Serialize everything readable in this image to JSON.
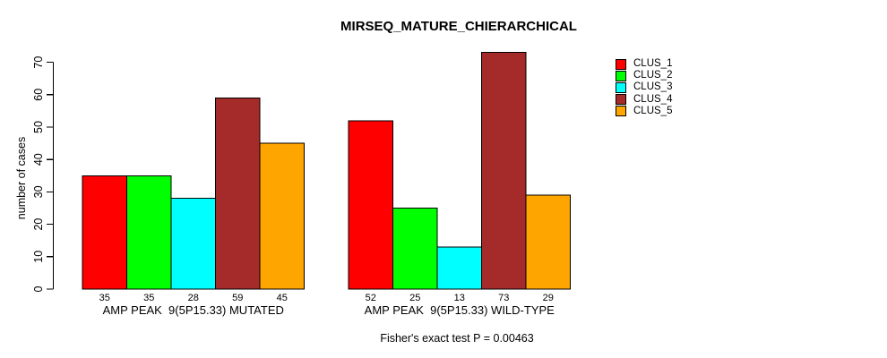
{
  "chart_data": {
    "type": "bar",
    "title": "MIRSEQ_MATURE_CHIERARCHICAL",
    "ylabel": "number of cases",
    "xlabel": "",
    "ylim": [
      0,
      70
    ],
    "yticks": [
      0,
      10,
      20,
      30,
      40,
      50,
      60,
      70
    ],
    "grid": false,
    "bar_borders": true,
    "legend_position": "top-right-outside",
    "categories": [
      "AMP PEAK  9(5P15.33) MUTATED",
      "AMP PEAK  9(5P15.33) WILD-TYPE"
    ],
    "series": [
      {
        "name": "CLUS_1",
        "color": "#FF0000",
        "values": [
          35,
          52
        ]
      },
      {
        "name": "CLUS_2",
        "color": "#00FF00",
        "values": [
          35,
          25
        ]
      },
      {
        "name": "CLUS_3",
        "color": "#00FFFF",
        "values": [
          28,
          13
        ]
      },
      {
        "name": "CLUS_4",
        "color": "#A52A2A",
        "values": [
          59,
          73
        ]
      },
      {
        "name": "CLUS_5",
        "color": "#FFA500",
        "values": [
          45,
          29
        ]
      }
    ],
    "bar_value_labels": {
      "group_1": [
        35,
        35,
        28,
        59,
        45
      ],
      "group_2": [
        52,
        25,
        13,
        73,
        29
      ]
    },
    "annotation": "Fisher's exact test P = 0.00463"
  }
}
